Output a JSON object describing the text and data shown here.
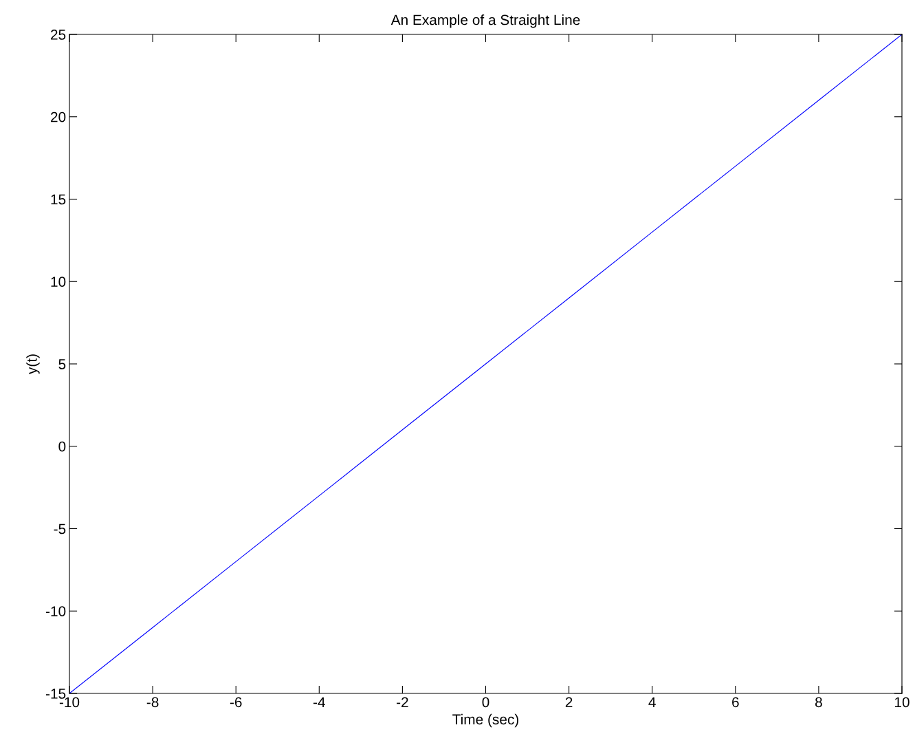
{
  "chart_data": {
    "type": "line",
    "title": "An Example of a Straight Line",
    "xlabel": "Time (sec)",
    "ylabel": "y(t)",
    "x": [
      -10,
      -8,
      -6,
      -4,
      -2,
      0,
      2,
      4,
      6,
      8,
      10
    ],
    "series": [
      {
        "color": "#0000ff",
        "values": [
          -15,
          -11,
          -7,
          -3,
          1,
          5,
          9,
          13,
          17,
          21,
          25
        ]
      }
    ],
    "xlim": [
      -10,
      10
    ],
    "xticks": [
      -10,
      -8,
      -6,
      -4,
      -2,
      0,
      2,
      4,
      6,
      8,
      10
    ],
    "ylim": [
      -15,
      25
    ],
    "yticks": [
      -15,
      -10,
      -5,
      0,
      5,
      10,
      15,
      20,
      25
    ],
    "grid": false,
    "marker": "none",
    "line_style": "solid"
  }
}
